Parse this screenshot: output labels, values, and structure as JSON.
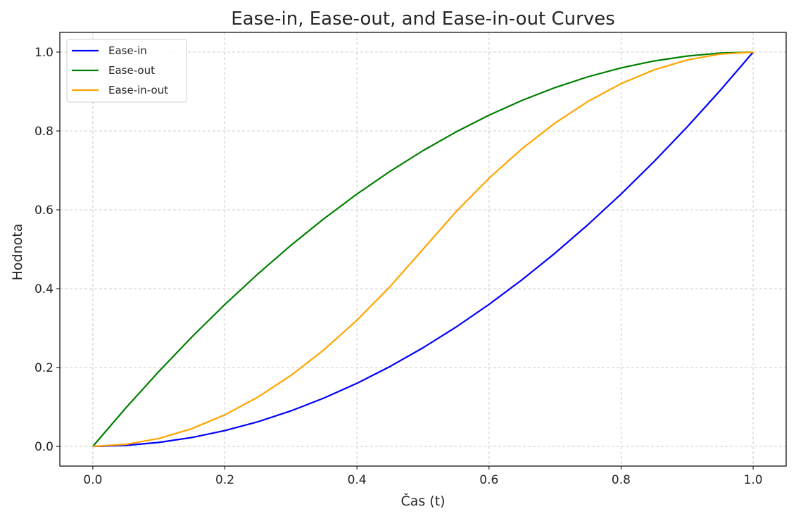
{
  "chart_data": {
    "type": "line",
    "title": "Ease-in, Ease-out, and Ease-in-out Curves",
    "xlabel": "Čas (t)",
    "ylabel": "Hodnota",
    "xlim": [
      -0.05,
      1.05
    ],
    "ylim": [
      -0.05,
      1.05
    ],
    "xticks": [
      "0.0",
      "0.2",
      "0.4",
      "0.6",
      "0.8",
      "1.0"
    ],
    "yticks": [
      "0.0",
      "0.2",
      "0.4",
      "0.6",
      "0.8",
      "1.0"
    ],
    "grid": true,
    "legend_position": "top-left",
    "x": [
      0,
      0.05,
      0.1,
      0.15,
      0.2,
      0.25,
      0.3,
      0.35,
      0.4,
      0.45,
      0.5,
      0.55,
      0.6,
      0.65,
      0.7,
      0.75,
      0.8,
      0.85,
      0.9,
      0.95,
      1
    ],
    "series": [
      {
        "name": "Ease-in",
        "color": "#0000ff",
        "values": [
          0,
          0.0025,
          0.01,
          0.0225,
          0.04,
          0.0625,
          0.09,
          0.1225,
          0.16,
          0.2025,
          0.25,
          0.3025,
          0.36,
          0.4225,
          0.49,
          0.5625,
          0.64,
          0.7225,
          0.81,
          0.9025,
          1
        ]
      },
      {
        "name": "Ease-out",
        "color": "#008000",
        "values": [
          0,
          0.0975,
          0.19,
          0.2775,
          0.36,
          0.4375,
          0.51,
          0.5775,
          0.64,
          0.6975,
          0.75,
          0.7975,
          0.84,
          0.8775,
          0.91,
          0.9375,
          0.96,
          0.9775,
          0.99,
          0.9975,
          1
        ]
      },
      {
        "name": "Ease-in-out",
        "color": "#ffa500",
        "values": [
          0,
          0.005,
          0.02,
          0.045,
          0.08,
          0.125,
          0.18,
          0.245,
          0.32,
          0.405,
          0.5,
          0.595,
          0.68,
          0.755,
          0.82,
          0.875,
          0.92,
          0.955,
          0.98,
          0.995,
          1
        ]
      }
    ]
  }
}
